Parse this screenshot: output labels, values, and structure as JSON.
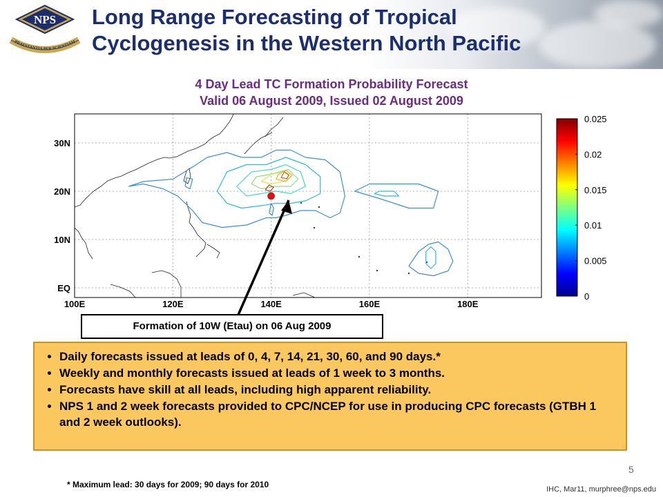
{
  "slide": {
    "title_line1": "Long Range Forecasting of Tropical",
    "title_line2": "Cyclogenesis in the Western North Pacific",
    "logo_text": "NPS",
    "logo_motto": "PRAESTANTIA PER SCIENTIAM",
    "page_number": "5",
    "credit": "IHC, Mar11, murphree@nps.edu",
    "footnote": "* Maximum lead: 30 days for 2009; 90 days for 2010",
    "callout": "Formation of 10W (Etau) on 06 Aug 2009",
    "bullets": [
      "Daily forecasts issued at leads of 0, 4, 7, 14, 21, 30, 60, and 90 days.*",
      "Weekly and monthly forecasts issued at leads of 1 week to 3 months.",
      "Forecasts have skill at all leads, including high apparent reliability.",
      "NPS 1 and 2 week forecasts provided to CPC/NCEP for use in producing CPC forecasts (GTBH 1 and 2 week outlooks)."
    ]
  },
  "chart_data": {
    "type": "heatmap",
    "title_line1": "4 Day Lead TC Formation Probability Forecast",
    "title_line2": "Valid 06 August 2009, Issued 02 August 2009",
    "xlim": [
      100,
      195
    ],
    "ylim": [
      -2,
      36
    ],
    "x_ticks": [
      {
        "value": 100,
        "label": "100E"
      },
      {
        "value": 120,
        "label": "120E"
      },
      {
        "value": 140,
        "label": "140E"
      },
      {
        "value": 160,
        "label": "160E"
      },
      {
        "value": 180,
        "label": "180E"
      }
    ],
    "y_ticks": [
      {
        "value": 0,
        "label": "EQ"
      },
      {
        "value": 10,
        "label": "10N"
      },
      {
        "value": 20,
        "label": "20N"
      },
      {
        "value": 30,
        "label": "30N"
      }
    ],
    "grid": true,
    "colorbar": {
      "min": 0,
      "max": 0.025,
      "ticks": [
        "0.025",
        "0.02",
        "0.015",
        "0.01",
        "0.005",
        "0"
      ],
      "colors": [
        "#00008f",
        "#0000ff",
        "#0080ff",
        "#00ffff",
        "#80ff80",
        "#ffff00",
        "#ff8000",
        "#ff0000",
        "#800000"
      ]
    },
    "formation_point": {
      "lon": 140,
      "lat": 19,
      "color": "#e01010"
    },
    "contours": [
      {
        "level": 0.003,
        "color": "#3a8fd8",
        "points": [
          [
            111,
            21
          ],
          [
            114,
            21.5
          ],
          [
            118,
            20.5
          ],
          [
            121,
            19
          ],
          [
            124,
            16
          ],
          [
            126,
            13.5
          ],
          [
            130,
            12.5
          ],
          [
            135,
            13
          ],
          [
            139,
            14.5
          ],
          [
            141,
            14.5
          ],
          [
            143,
            15
          ],
          [
            146,
            16
          ],
          [
            149,
            16
          ],
          [
            152,
            14.5
          ],
          [
            154,
            15.5
          ],
          [
            155,
            19
          ],
          [
            154,
            24
          ],
          [
            151,
            26.5
          ],
          [
            147,
            27
          ],
          [
            144,
            28.5
          ],
          [
            141,
            28.5
          ],
          [
            138,
            27
          ],
          [
            134,
            27
          ],
          [
            131,
            28
          ],
          [
            127,
            27
          ],
          [
            124,
            25
          ],
          [
            120,
            22.5
          ],
          [
            114,
            22
          ],
          [
            111,
            21
          ]
        ]
      },
      {
        "level": 0.006,
        "color": "#2bb6e8",
        "points": [
          [
            129,
            20
          ],
          [
            131,
            17.5
          ],
          [
            134,
            16.5
          ],
          [
            138,
            17
          ],
          [
            141,
            17.5
          ],
          [
            144,
            17.5
          ],
          [
            147,
            18
          ],
          [
            150,
            19.5
          ],
          [
            150,
            23
          ],
          [
            147,
            25.5
          ],
          [
            143,
            27
          ],
          [
            139,
            25.5
          ],
          [
            135,
            25.5
          ],
          [
            131,
            24
          ],
          [
            129,
            20
          ]
        ]
      },
      {
        "level": 0.009,
        "color": "#43d9c8",
        "points": [
          [
            133,
            21
          ],
          [
            135,
            19
          ],
          [
            138,
            19.5
          ],
          [
            141,
            20
          ],
          [
            144,
            19.5
          ],
          [
            147,
            21
          ],
          [
            146,
            24
          ],
          [
            143,
            25.5
          ],
          [
            140,
            24.5
          ],
          [
            136,
            24
          ],
          [
            133,
            21
          ]
        ]
      },
      {
        "level": 0.012,
        "color": "#8ee07a",
        "points": [
          [
            136,
            21.5
          ],
          [
            138,
            20.5
          ],
          [
            141,
            21
          ],
          [
            144,
            21
          ],
          [
            145.5,
            22.5
          ],
          [
            143.5,
            24.5
          ],
          [
            140,
            23.5
          ],
          [
            137,
            23
          ],
          [
            136,
            21.5
          ]
        ]
      },
      {
        "level": 0.015,
        "color": "#d8e84a",
        "points": [
          [
            138,
            22
          ],
          [
            140,
            21.5
          ],
          [
            142.5,
            22
          ],
          [
            144,
            23
          ],
          [
            142.5,
            24
          ],
          [
            140,
            23.5
          ],
          [
            138,
            22
          ]
        ]
      },
      {
        "level": 0.017,
        "color": "#f0b030",
        "points": [
          [
            141,
            22.5
          ],
          [
            143,
            22
          ],
          [
            144.3,
            23.3
          ],
          [
            143,
            24.3
          ],
          [
            141.5,
            23.5
          ],
          [
            141,
            22.5
          ]
        ]
      },
      {
        "level": 0.019,
        "color": "#e05a28",
        "points": [
          [
            142,
            22.8
          ],
          [
            143.2,
            22.6
          ],
          [
            143.6,
            23.4
          ],
          [
            142.7,
            24
          ],
          [
            142,
            22.8
          ]
        ]
      },
      {
        "level": 0.02,
        "color": "#c83a2a",
        "points": [
          [
            138.8,
            20.3
          ],
          [
            139.8,
            20
          ],
          [
            140.5,
            20.8
          ],
          [
            139.6,
            21.3
          ],
          [
            138.8,
            20.3
          ]
        ]
      },
      {
        "level": 0.003,
        "color": "#3a8fd8",
        "points": [
          [
            157,
            20
          ],
          [
            162,
            18.5
          ],
          [
            168,
            16.5
          ],
          [
            173,
            16.5
          ],
          [
            174,
            20
          ],
          [
            170,
            21.5
          ],
          [
            165,
            21.5
          ],
          [
            160,
            21.5
          ],
          [
            157,
            20
          ]
        ]
      },
      {
        "level": 0.006,
        "color": "#2bb6e8",
        "points": [
          [
            161,
            19.5
          ],
          [
            163,
            19
          ],
          [
            166,
            19
          ],
          [
            165,
            20
          ],
          [
            162,
            20
          ],
          [
            161,
            19.5
          ]
        ]
      },
      {
        "level": 0.003,
        "color": "#3a8fd8",
        "points": [
          [
            168,
            4.5
          ],
          [
            170,
            3
          ],
          [
            173,
            2.5
          ],
          [
            176,
            3.5
          ],
          [
            177,
            5.5
          ],
          [
            176,
            8
          ],
          [
            174,
            9.5
          ],
          [
            172,
            9
          ],
          [
            170,
            7.5
          ],
          [
            168,
            4.5
          ]
        ]
      },
      {
        "level": 0.006,
        "color": "#2bb6e8",
        "points": [
          [
            171.5,
            5
          ],
          [
            172.5,
            4
          ],
          [
            173.5,
            5
          ],
          [
            173.5,
            7.5
          ],
          [
            172.5,
            8.5
          ],
          [
            171.5,
            7.5
          ],
          [
            171.5,
            5
          ]
        ]
      },
      {
        "level": 0.003,
        "color": "#3a8fd8",
        "points": [
          [
            139.6,
            15.5
          ],
          [
            140.2,
            15
          ],
          [
            140.5,
            16.5
          ],
          [
            140,
            17.5
          ],
          [
            139.6,
            15.5
          ]
        ]
      },
      {
        "level": 0.003,
        "color": "#3a8fd8",
        "points": [
          [
            122.5,
            21
          ],
          [
            123.5,
            20.5
          ],
          [
            124,
            22.5
          ],
          [
            122.8,
            22.8
          ],
          [
            122.5,
            21
          ]
        ]
      }
    ]
  }
}
